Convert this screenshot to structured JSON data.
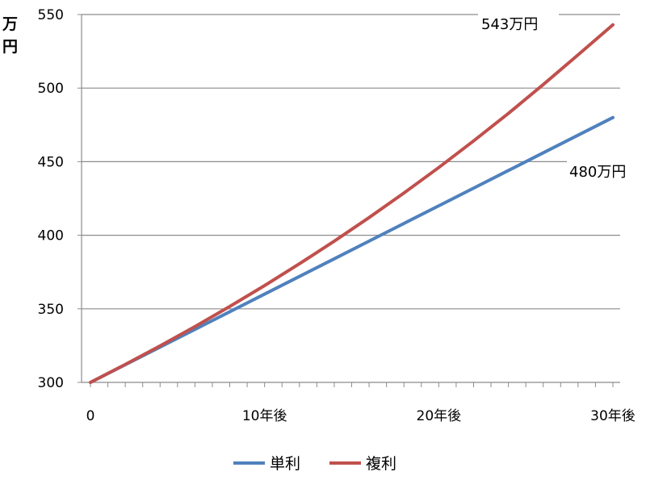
{
  "chart_data": {
    "type": "line",
    "title": "",
    "ylabel": "万円",
    "xlabel": "",
    "ylim": [
      300,
      550
    ],
    "xlim": [
      0,
      30
    ],
    "yticks": [
      300,
      350,
      400,
      450,
      500,
      550
    ],
    "xtick_labels": [
      {
        "x": 0,
        "label": "0"
      },
      {
        "x": 10,
        "label": "10年後"
      },
      {
        "x": 20,
        "label": "20年後"
      },
      {
        "x": 30,
        "label": "30年後"
      }
    ],
    "x": [
      0,
      2,
      4,
      6,
      8,
      10,
      12,
      14,
      16,
      18,
      20,
      22,
      24,
      26,
      28,
      30
    ],
    "series": [
      {
        "name": "単利",
        "color": "#4f81bd",
        "values": [
          300,
          312,
          324,
          336,
          348,
          360,
          372,
          384,
          396,
          408,
          420,
          432,
          444,
          456,
          468,
          480
        ]
      },
      {
        "name": "複利",
        "color": "#c0504d",
        "values": [
          300,
          312.2,
          324.8,
          337.9,
          351.6,
          365.8,
          380.6,
          396.0,
          412.0,
          428.7,
          446.0,
          464.1,
          482.8,
          502.4,
          522.6,
          543
        ]
      }
    ],
    "annotations": [
      {
        "text": "543万円",
        "series": "複利"
      },
      {
        "text": "480万円",
        "series": "単利"
      }
    ],
    "grid": true,
    "legend_position": "bottom"
  }
}
